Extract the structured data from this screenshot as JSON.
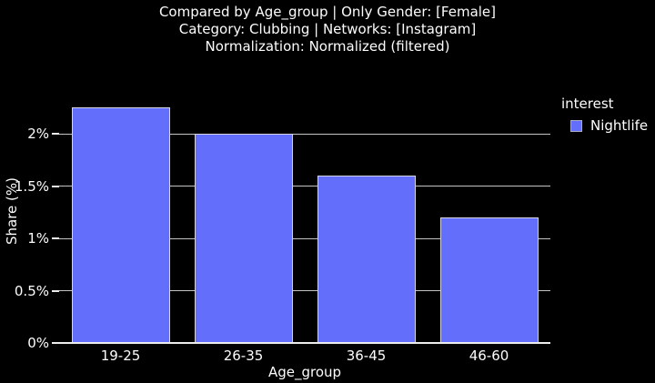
{
  "title": {
    "line1": "Compared by Age_group | Only Gender: [Female]",
    "line2": "Category: Clubbing | Networks: [Instagram]",
    "line3": "Normalization: Normalized (filtered)"
  },
  "x_axis": {
    "title": "Age_group",
    "tick_labels": [
      "19-25",
      "26-35",
      "36-45",
      "46-60"
    ]
  },
  "y_axis": {
    "title": "Share (%)",
    "tick_labels": [
      "0%",
      "0.5%",
      "1%",
      "1.5%",
      "2%"
    ],
    "tick_values": [
      0,
      0.5,
      1,
      1.5,
      2
    ]
  },
  "legend": {
    "title": "interest",
    "items": [
      {
        "label": "Nightlife",
        "swatch_color": "#636efa"
      }
    ]
  },
  "chart_data": {
    "type": "bar",
    "title": "Compared by Age_group | Only Gender: [Female]\nCategory: Clubbing | Networks: [Instagram]\nNormalization: Normalized (filtered)",
    "categories": [
      "19-25",
      "26-35",
      "36-45",
      "46-60"
    ],
    "series": [
      {
        "name": "Nightlife",
        "values": [
          2.25,
          2.0,
          1.6,
          1.2
        ]
      }
    ],
    "xlabel": "Age_group",
    "ylabel": "Share (%)",
    "ylim": [
      0,
      2.52
    ],
    "yticks": [
      0,
      0.5,
      1,
      1.5,
      2
    ],
    "grid": true,
    "legend_title": "interest",
    "legend_position": "right",
    "background": "dark"
  },
  "colors": {
    "background": "#000000",
    "bar_fill": "#636efa",
    "bar_border": "#d4d4e6",
    "gridline": "#c3c3c3",
    "axis_line": "#ededed",
    "text": "#ffffff"
  }
}
